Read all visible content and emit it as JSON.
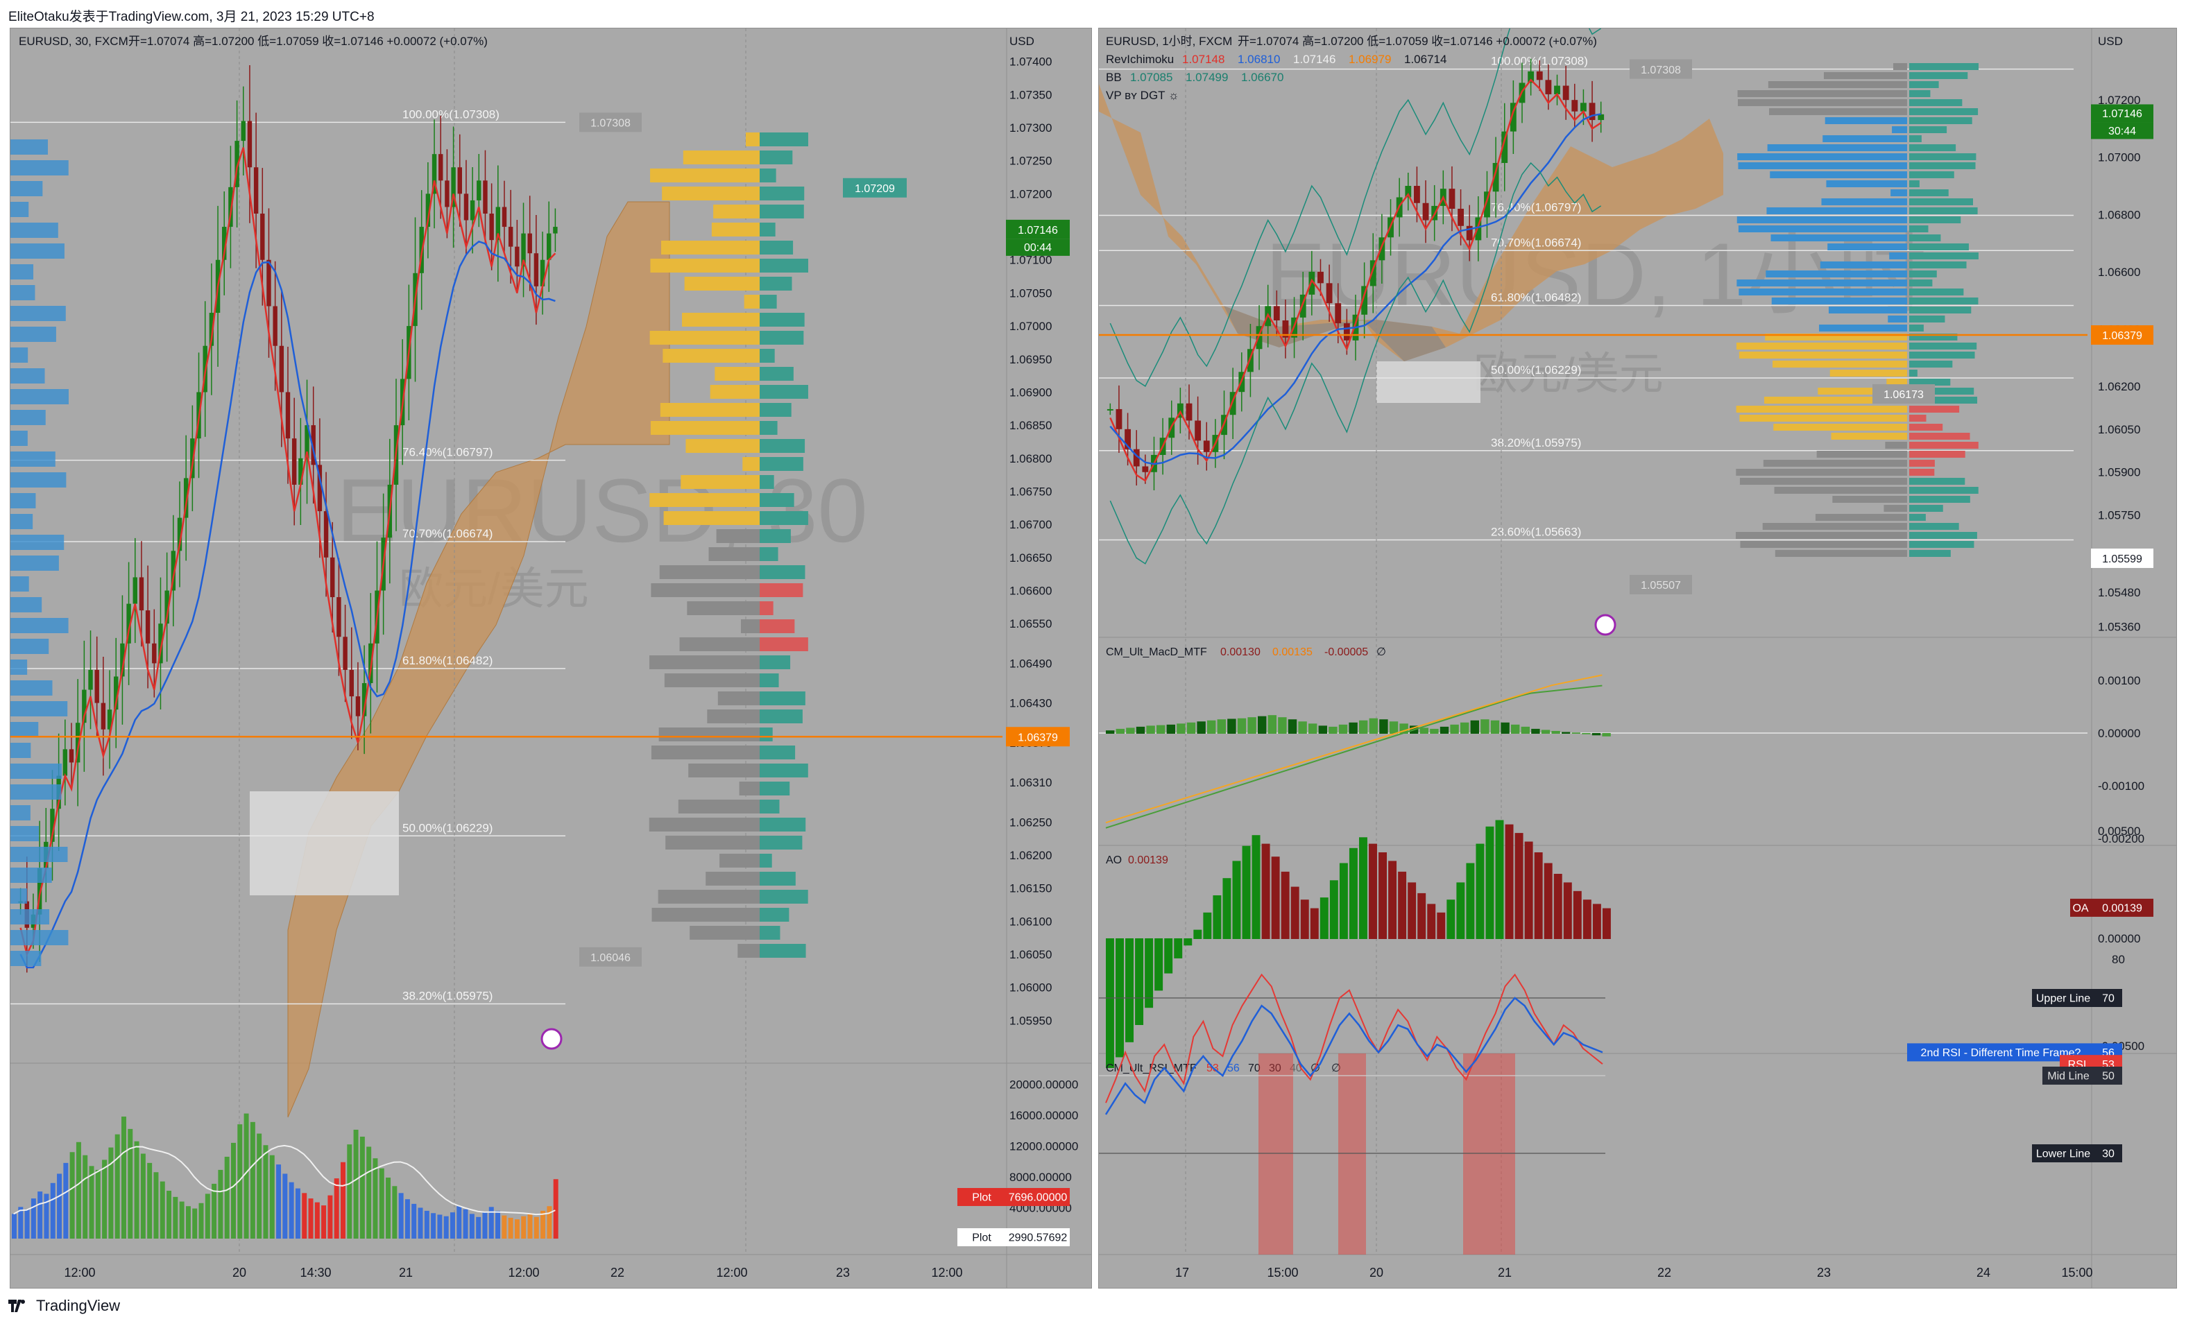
{
  "header": {
    "title": "EliteOtaku发表于TradingView.com,  3月 21, 2023 15:29 UTC+8"
  },
  "footer": {
    "brand": "TradingView"
  },
  "colors": {
    "up": "#1a7f1a",
    "down": "#8b1a1a",
    "bg": "#a9a9a9",
    "ichimoku_cloud": "#c9935a",
    "orange_line": "#f57c00"
  },
  "left": {
    "legend": {
      "symbol": "EURUSD, 30, FXCM",
      "ohlc": "开=1.07074  高=1.07200  低=1.07059  收=1.07146  +0.00072 (+0.07%)"
    },
    "watermark": {
      "symbol": "EURUSD, 30",
      "name": "欧元/美元"
    },
    "price_axis": {
      "currency": "USD",
      "labels": [
        "1.07400",
        "1.07350",
        "1.07300",
        "1.07250",
        "1.07200",
        "1.07150",
        "1.07100",
        "1.07050",
        "1.07000",
        "1.06950",
        "1.06900",
        "1.06850",
        "1.06800",
        "1.06750",
        "1.06700",
        "1.06650",
        "1.06600",
        "1.06550",
        "1.06490",
        "1.06430",
        "1.06370",
        "1.06310",
        "1.06250",
        "1.06200",
        "1.06150",
        "1.06100",
        "1.06050",
        "1.06000",
        "1.05950"
      ],
      "current_price": "1.07146",
      "countdown": "00:44",
      "orange_level": "1.06379"
    },
    "fib_levels": [
      {
        "label": "100.00%(1.07308)"
      },
      {
        "label": "76.40%(1.06797)"
      },
      {
        "label": "70.70%(1.06674)"
      },
      {
        "label": "61.80%(1.06482)"
      },
      {
        "label": "50.00%(1.06229)"
      },
      {
        "label": "38.20%(1.05975)"
      }
    ],
    "tags": {
      "high": "1.07308",
      "poc": "1.07209",
      "low": "1.06046"
    },
    "volume_axis": {
      "labels": [
        "20000.00000",
        "16000.00000",
        "12000.00000",
        "8000.00000",
        "4000.00000",
        "0.00000"
      ]
    },
    "volume_badges": {
      "plot_label": "Plot",
      "plot1": "7696.00000",
      "plot2": "2990.57692"
    },
    "time_axis": [
      "12:00",
      "20",
      "14:30",
      "21",
      "12:00",
      "22",
      "12:00",
      "23",
      "12:00"
    ]
  },
  "right": {
    "legend": {
      "symbol": "EURUSD, 1小时, FXCM",
      "ohlc": "开=1.07074  高=1.07200  低=1.07059  收=1.07146  +0.00072 (+0.07%)",
      "ichimoku_name": "RevIchimoku",
      "ichimoku_values": [
        "1.07148",
        "1.06810",
        "1.07146",
        "1.06979",
        "1.06714"
      ],
      "bb_name": "BB",
      "bb_values": [
        "1.07085",
        "1.07499",
        "1.06670"
      ],
      "vp_name": "VP ʙʏ DGT ☼"
    },
    "watermark": {
      "symbol": "EURUSD, 1小时",
      "name": "欧元/美元"
    },
    "price_axis": {
      "currency": "USD",
      "labels": [
        "1.07200",
        "1.07000",
        "1.06800",
        "1.06600",
        "1.06400",
        "1.06200",
        "1.06050",
        "1.05900",
        "1.05750",
        "1.05600",
        "1.05480",
        "1.05360"
      ],
      "current_price": "1.07146",
      "countdown": "30:44",
      "orange_level": "1.06379",
      "low_tag": "1.05599"
    },
    "fib_levels": [
      {
        "label": "100.00%(1.07308)"
      },
      {
        "label": "76.40%(1.06797)"
      },
      {
        "label": "70.70%(1.06674)"
      },
      {
        "label": "61.80%(1.06482)"
      },
      {
        "label": "50.00%(1.06229)"
      },
      {
        "label": "38.20%(1.05975)"
      },
      {
        "label": "23.60%(1.05663)"
      }
    ],
    "tags": {
      "high": "1.07308",
      "mid": "1.06173",
      "low": "1.05507"
    },
    "macd": {
      "name": "CM_Ult_MacD_MTF",
      "values": [
        "0.00130",
        "0.00135",
        "-0.00005",
        "∅"
      ],
      "axis": [
        "0.00100",
        "0.00000",
        "-0.00100",
        "-0.00200"
      ]
    },
    "ao": {
      "name": "AO",
      "value": "0.00139",
      "badge_label": "OA",
      "badge_value": "0.00139",
      "axis": [
        "0.00500",
        "0.00000",
        "-0.00500"
      ]
    },
    "rsi": {
      "name": "CM_Ult_RSI_MTF",
      "values": [
        "53",
        "56",
        "70",
        "30",
        "40",
        "∅",
        "∅"
      ],
      "axis": [
        "80",
        "70",
        "56",
        "53",
        "50",
        "30"
      ],
      "labels": {
        "upper": "Upper Line",
        "upper_v": "70",
        "second": "2nd RSI - Different Time Frame?",
        "second_v": "56",
        "rsi": "RSI",
        "rsi_v": "53",
        "mid": "Mid Line",
        "mid_v": "50",
        "lower": "Lower Line",
        "lower_v": "30"
      }
    },
    "time_axis": [
      "17",
      "15:00",
      "20",
      "21",
      "22",
      "23",
      "24",
      "15:00"
    ]
  },
  "chart_data": [
    {
      "type": "candlestick",
      "title": "EURUSD, 30, FXCM",
      "ylim": [
        1.059,
        1.0745
      ],
      "ohlc_last": {
        "open": 1.07074,
        "high": 1.072,
        "low": 1.07059,
        "close": 1.07146
      },
      "fib": [
        1.07308,
        1.06797,
        1.06674,
        1.06482,
        1.06229,
        1.05975
      ],
      "closes": [
        1.0613,
        1.0609,
        1.0611,
        1.0618,
        1.0622,
        1.0627,
        1.0632,
        1.0636,
        1.0634,
        1.064,
        1.0645,
        1.0648,
        1.0643,
        1.0639,
        1.0642,
        1.0647,
        1.0652,
        1.0658,
        1.0662,
        1.0657,
        1.0652,
        1.0649,
        1.0655,
        1.066,
        1.0666,
        1.0671,
        1.0677,
        1.0683,
        1.069,
        1.0697,
        1.0702,
        1.071,
        1.0715,
        1.0721,
        1.0728,
        1.0731,
        1.0724,
        1.0717,
        1.071,
        1.0703,
        1.0697,
        1.069,
        1.0683,
        1.0676,
        1.068,
        1.0685,
        1.0679,
        1.0672,
        1.0665,
        1.0659,
        1.0653,
        1.0648,
        1.0644,
        1.0641,
        1.0646,
        1.0652,
        1.066,
        1.0668,
        1.0676,
        1.0685,
        1.0692,
        1.07,
        1.0708,
        1.0715,
        1.072,
        1.0726,
        1.0722,
        1.0718,
        1.0724,
        1.072,
        1.0716,
        1.0719,
        1.0722,
        1.0717,
        1.0713,
        1.0718,
        1.0715,
        1.0712,
        1.0709,
        1.0714,
        1.0711,
        1.0706,
        1.071,
        1.0714,
        1.0715
      ],
      "volume": [
        3200,
        4100,
        3800,
        5200,
        6100,
        5800,
        7200,
        8400,
        9800,
        11200,
        12500,
        10800,
        9400,
        8900,
        10200,
        11800,
        13500,
        15800,
        14200,
        12600,
        11000,
        9800,
        8600,
        7400,
        6200,
        5400,
        4800,
        4200,
        3900,
        4600,
        5800,
        7100,
        8900,
        10600,
        12400,
        14800,
        16200,
        15100,
        13600,
        12100,
        10800,
        9600,
        8400,
        7300,
        6500,
        5900,
        5200,
        4700,
        4300,
        5600,
        7800,
        9900,
        12200,
        14100,
        13200,
        11900,
        10400,
        9100,
        7900,
        6800,
        5900,
        5100,
        4500,
        4000,
        3600,
        3300,
        3100,
        2900,
        3400,
        4200,
        3800,
        3200,
        2800,
        3500,
        4100,
        3600,
        3000,
        2700,
        2500,
        2900,
        3300,
        2800,
        3600,
        4200,
        7696
      ]
    },
    {
      "type": "candlestick",
      "title": "EURUSD, 1小时, FXCM",
      "ylim": [
        1.0533,
        1.0745
      ],
      "ohlc_last": {
        "open": 1.07074,
        "high": 1.072,
        "low": 1.07059,
        "close": 1.07146
      },
      "fib": [
        1.07308,
        1.06797,
        1.06674,
        1.06482,
        1.06229,
        1.05975,
        1.05663
      ],
      "closes": [
        1.0612,
        1.0605,
        1.0598,
        1.0592,
        1.059,
        1.0596,
        1.0602,
        1.0609,
        1.0614,
        1.0608,
        1.0601,
        1.0597,
        1.0603,
        1.061,
        1.0618,
        1.0625,
        1.0633,
        1.0641,
        1.0648,
        1.0643,
        1.0637,
        1.0644,
        1.0652,
        1.066,
        1.0656,
        1.0649,
        1.0642,
        1.0636,
        1.0645,
        1.0655,
        1.0664,
        1.0672,
        1.0679,
        1.0686,
        1.069,
        1.0684,
        1.0678,
        1.0683,
        1.0689,
        1.0682,
        1.0676,
        1.0671,
        1.0679,
        1.0688,
        1.0698,
        1.0709,
        1.0719,
        1.0726,
        1.073,
        1.0727,
        1.0722,
        1.0725,
        1.072,
        1.0716,
        1.0719,
        1.0713,
        1.0715
      ],
      "macd_hist": [
        5e-05,
        8e-05,
        0.0001,
        0.00012,
        0.00014,
        0.00015,
        0.00016,
        0.00018,
        0.0002,
        0.00022,
        0.00024,
        0.00026,
        0.00027,
        0.00028,
        0.0003,
        0.00032,
        0.00034,
        0.0003,
        0.00026,
        0.00022,
        0.00018,
        0.00014,
        0.00012,
        0.00016,
        0.0002,
        0.00024,
        0.00028,
        0.00026,
        0.00022,
        0.00018,
        0.00014,
        0.0001,
        8e-05,
        0.00012,
        0.00016,
        0.0002,
        0.00024,
        0.00026,
        0.00024,
        0.0002,
        0.00016,
        0.00012,
        8e-05,
        6e-05,
        4e-05,
        2e-05,
        1e-05,
        -1e-05,
        -3e-05,
        -5e-05
      ],
      "ao": [
        -0.006,
        -0.0055,
        -0.0048,
        -0.004,
        -0.0032,
        -0.0024,
        -0.0016,
        -0.0009,
        -0.0003,
        0.0004,
        0.0012,
        0.002,
        0.0028,
        0.0036,
        0.0043,
        0.0048,
        0.0044,
        0.0038,
        0.0031,
        0.0024,
        0.0018,
        0.0014,
        0.0019,
        0.0027,
        0.0035,
        0.0042,
        0.0047,
        0.0044,
        0.004,
        0.0036,
        0.0031,
        0.0026,
        0.0021,
        0.0016,
        0.0012,
        0.0018,
        0.0026,
        0.0035,
        0.0044,
        0.0052,
        0.0055,
        0.0053,
        0.0049,
        0.0045,
        0.004,
        0.0035,
        0.003,
        0.0026,
        0.0022,
        0.0018,
        0.0016,
        0.0014
      ],
      "rsi": [
        43,
        49,
        56,
        50,
        46,
        55,
        58,
        52,
        48,
        60,
        64,
        57,
        55,
        63,
        68,
        72,
        76,
        73,
        66,
        60,
        52,
        49,
        55,
        63,
        70,
        72,
        66,
        60,
        56,
        62,
        67,
        64,
        58,
        54,
        60,
        57,
        52,
        49,
        55,
        61,
        66,
        73,
        76,
        72,
        66,
        62,
        58,
        63,
        61,
        57,
        55,
        53
      ],
      "rsi2": [
        40,
        44,
        48,
        45,
        43,
        49,
        52,
        49,
        46,
        52,
        55,
        52,
        50,
        55,
        59,
        64,
        68,
        66,
        62,
        58,
        53,
        50,
        53,
        58,
        63,
        66,
        63,
        59,
        56,
        59,
        63,
        62,
        58,
        55,
        58,
        57,
        54,
        51,
        54,
        58,
        62,
        67,
        70,
        68,
        64,
        61,
        58,
        61,
        60,
        58,
        57,
        56
      ]
    }
  ]
}
